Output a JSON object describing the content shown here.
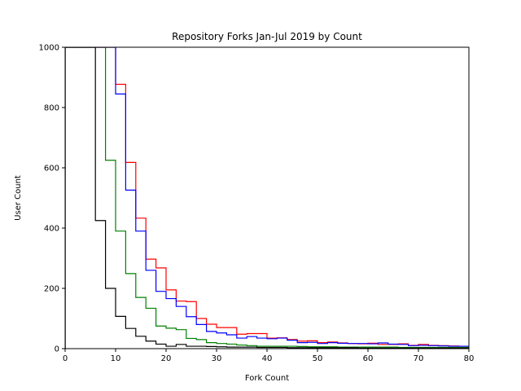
{
  "chart_data": {
    "type": "line",
    "style": "step histogram",
    "title": "Repository Forks Jan-Jul 2019 by Count",
    "xlabel": "Fork Count",
    "ylabel": "User Count",
    "xlim": [
      0,
      80
    ],
    "ylim": [
      0,
      1000
    ],
    "xticks": [
      0,
      10,
      20,
      30,
      40,
      50,
      60,
      70,
      80
    ],
    "yticks": [
      0,
      200,
      400,
      600,
      800,
      1000
    ],
    "grid": false,
    "legend": "none",
    "bin_edges": [
      0,
      2,
      4,
      6,
      8,
      10,
      12,
      14,
      16,
      18,
      20,
      22,
      24,
      26,
      28,
      30,
      32,
      34,
      36,
      38,
      40,
      42,
      44,
      46,
      48,
      50,
      52,
      54,
      56,
      58,
      60,
      62,
      64,
      66,
      68,
      70,
      72,
      74,
      76,
      78,
      80
    ],
    "series": [
      {
        "color": "#ff0000",
        "values": [
          1000,
          1000,
          1000,
          1000,
          1000,
          877,
          618,
          433,
          297,
          268,
          195,
          158,
          156,
          100,
          81,
          70,
          70,
          48,
          50,
          50,
          35,
          36,
          30,
          25,
          26,
          20,
          22,
          19,
          17,
          16,
          18,
          14,
          14,
          16,
          11,
          14,
          11,
          10,
          9,
          8
        ]
      },
      {
        "color": "#0000ff",
        "values": [
          1000,
          1000,
          1000,
          1000,
          1000,
          845,
          526,
          390,
          260,
          190,
          166,
          140,
          106,
          80,
          57,
          52,
          46,
          35,
          40,
          35,
          33,
          35,
          28,
          20,
          21,
          17,
          20,
          18,
          17,
          17,
          16,
          19,
          15,
          14,
          10,
          11,
          10,
          9,
          8,
          8
        ]
      },
      {
        "color": "#008000",
        "values": [
          1000,
          1000,
          1000,
          1000,
          625,
          390,
          249,
          170,
          134,
          75,
          68,
          63,
          34,
          30,
          20,
          17,
          15,
          12,
          10,
          8,
          8,
          8,
          8,
          7,
          6,
          6,
          6,
          5,
          5,
          5,
          5,
          5,
          5,
          4,
          4,
          4,
          4,
          4,
          4,
          4
        ]
      },
      {
        "color": "#000000",
        "values": [
          1000,
          1000,
          1000,
          425,
          200,
          107,
          67,
          41,
          25,
          15,
          8,
          14,
          8,
          8,
          7,
          6,
          5,
          5,
          5,
          4,
          4,
          4,
          3,
          3,
          3,
          3,
          3,
          3,
          3,
          2,
          2,
          2,
          2,
          2,
          2,
          2,
          2,
          2,
          2,
          2
        ]
      }
    ]
  }
}
